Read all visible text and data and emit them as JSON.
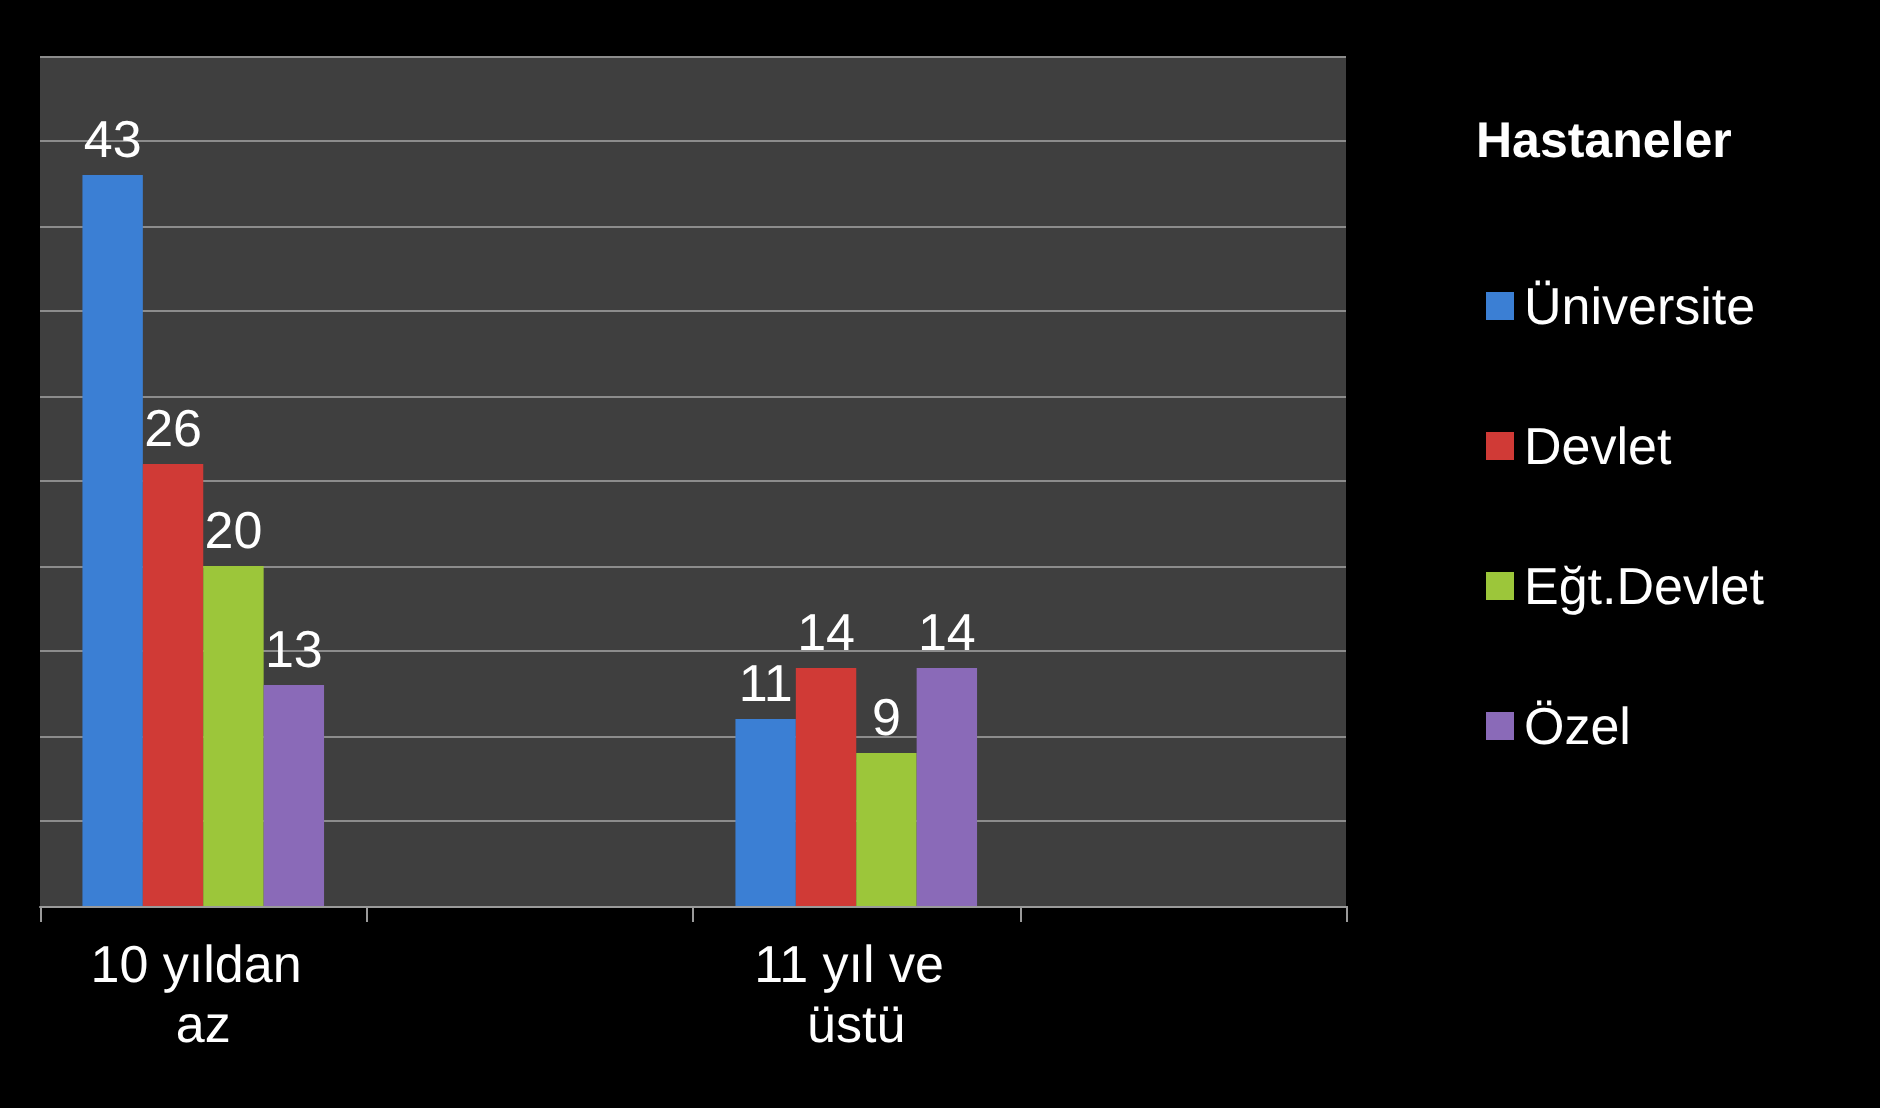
{
  "chart_data": {
    "type": "bar",
    "legend_title": "Hastaneler",
    "categories": [
      "10 yıldan az",
      null,
      "11 yıl ve üstü",
      null
    ],
    "series": [
      {
        "name": "Üniversite",
        "color": "#3b7fd4",
        "values": [
          43,
          null,
          11,
          null
        ]
      },
      {
        "name": "Devlet",
        "color": "#d03a36",
        "values": [
          26,
          null,
          14,
          null
        ]
      },
      {
        "name": "Eğt.Devlet",
        "color": "#9cc63a",
        "values": [
          20,
          null,
          9,
          null
        ]
      },
      {
        "name": "Özel",
        "color": "#8a6ab8",
        "values": [
          13,
          null,
          14,
          null
        ]
      }
    ],
    "ylim": [
      0,
      50
    ],
    "yticks": [
      {
        "value": 0,
        "label": null
      },
      {
        "value": 5,
        "label": null
      },
      {
        "value": 10,
        "label": null
      },
      {
        "value": 15,
        "label": null
      },
      {
        "value": 20,
        "label": null
      },
      {
        "value": 25,
        "label": null
      },
      {
        "value": 30,
        "label": null
      },
      {
        "value": 35,
        "label": null
      },
      {
        "value": 40,
        "label": null
      },
      {
        "value": 45,
        "label": null
      },
      {
        "value": 50,
        "label": null
      }
    ],
    "tick_labels": "x",
    "grid": "y",
    "legend": "right",
    "data_labels": true
  }
}
